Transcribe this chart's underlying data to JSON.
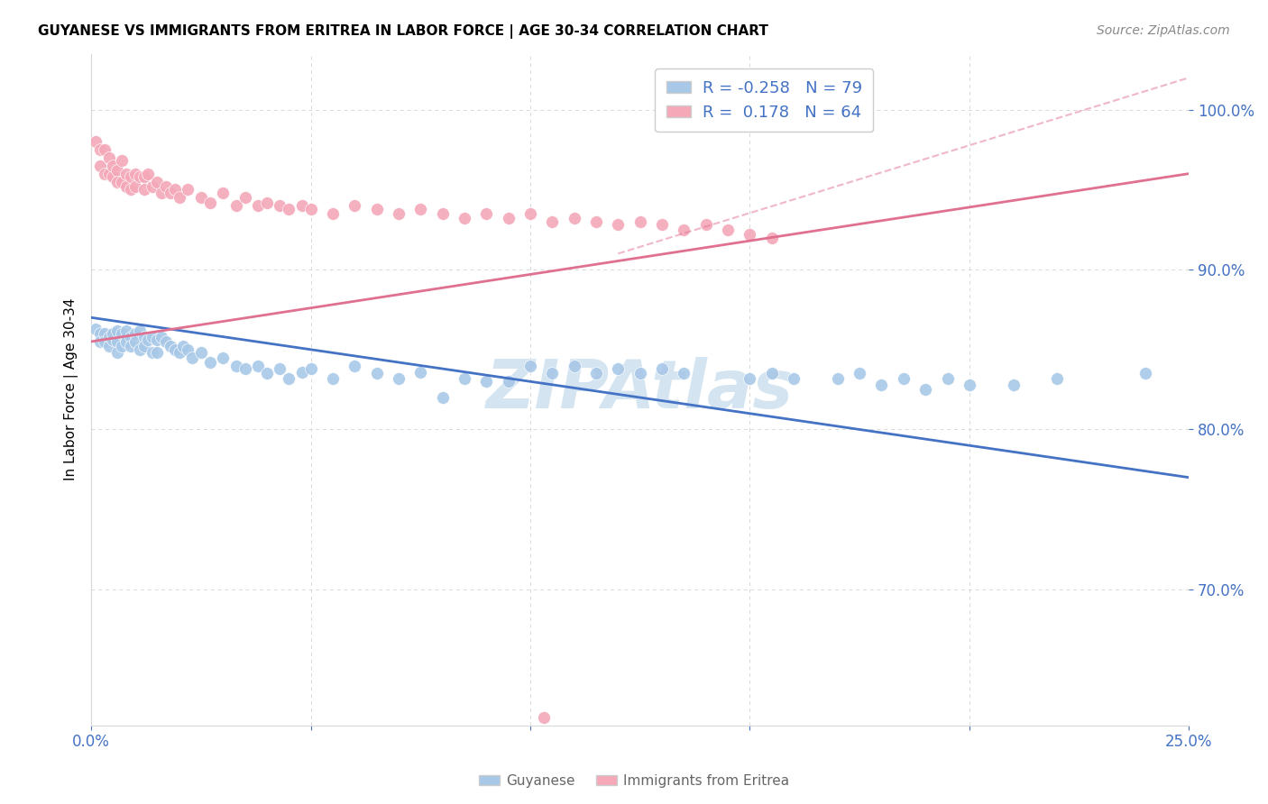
{
  "title": "GUYANESE VS IMMIGRANTS FROM ERITREA IN LABOR FORCE | AGE 30-34 CORRELATION CHART",
  "source": "Source: ZipAtlas.com",
  "ylabel": "In Labor Force | Age 30-34",
  "x_min": 0.0,
  "x_max": 0.25,
  "y_min": 0.615,
  "y_max": 1.035,
  "x_ticks": [
    0.0,
    0.05,
    0.1,
    0.15,
    0.2,
    0.25
  ],
  "x_tick_labels": [
    "0.0%",
    "",
    "",
    "",
    "",
    "25.0%"
  ],
  "y_ticks": [
    0.7,
    0.8,
    0.9,
    1.0
  ],
  "y_tick_labels": [
    "70.0%",
    "80.0%",
    "90.0%",
    "100.0%"
  ],
  "blue_color": "#a8c8e8",
  "pink_color": "#f4a8b8",
  "blue_line_color": "#4472c4",
  "pink_line_color": "#e07090",
  "blue_R": -0.258,
  "blue_N": 79,
  "pink_R": 0.178,
  "pink_N": 64,
  "watermark": "ZIPAtlas",
  "watermark_color": "#b8d4e8",
  "grid_color": "#d8d8d8",
  "axis_label_color": "#4472c4",
  "legend_label_color": "#4472c4",
  "blue_line_y0": 0.87,
  "blue_line_y1": 0.77,
  "pink_line_y0": 0.855,
  "pink_line_y1": 0.96,
  "blue_scatter_x": [
    0.001,
    0.002,
    0.002,
    0.003,
    0.003,
    0.004,
    0.004,
    0.005,
    0.005,
    0.006,
    0.006,
    0.006,
    0.007,
    0.007,
    0.008,
    0.008,
    0.008,
    0.009,
    0.009,
    0.01,
    0.01,
    0.011,
    0.011,
    0.012,
    0.012,
    0.013,
    0.014,
    0.014,
    0.015,
    0.015,
    0.016,
    0.017,
    0.018,
    0.019,
    0.02,
    0.021,
    0.022,
    0.023,
    0.025,
    0.027,
    0.03,
    0.033,
    0.035,
    0.038,
    0.04,
    0.043,
    0.045,
    0.048,
    0.05,
    0.055,
    0.06,
    0.065,
    0.07,
    0.075,
    0.08,
    0.085,
    0.09,
    0.095,
    0.1,
    0.105,
    0.11,
    0.115,
    0.12,
    0.125,
    0.13,
    0.135,
    0.15,
    0.155,
    0.16,
    0.17,
    0.175,
    0.18,
    0.185,
    0.19,
    0.195,
    0.2,
    0.21,
    0.22,
    0.24
  ],
  "blue_scatter_y": [
    0.863,
    0.86,
    0.855,
    0.86,
    0.855,
    0.858,
    0.852,
    0.856,
    0.86,
    0.862,
    0.855,
    0.848,
    0.86,
    0.852,
    0.858,
    0.862,
    0.855,
    0.858,
    0.852,
    0.86,
    0.855,
    0.862,
    0.85,
    0.858,
    0.852,
    0.856,
    0.858,
    0.848,
    0.856,
    0.848,
    0.858,
    0.855,
    0.852,
    0.85,
    0.848,
    0.852,
    0.85,
    0.845,
    0.848,
    0.842,
    0.845,
    0.84,
    0.838,
    0.84,
    0.835,
    0.838,
    0.832,
    0.836,
    0.838,
    0.832,
    0.84,
    0.835,
    0.832,
    0.836,
    0.82,
    0.832,
    0.83,
    0.83,
    0.84,
    0.835,
    0.84,
    0.835,
    0.838,
    0.835,
    0.838,
    0.835,
    0.832,
    0.835,
    0.832,
    0.832,
    0.835,
    0.828,
    0.832,
    0.825,
    0.832,
    0.828,
    0.828,
    0.832,
    0.835
  ],
  "pink_scatter_x": [
    0.001,
    0.002,
    0.002,
    0.003,
    0.003,
    0.004,
    0.004,
    0.005,
    0.005,
    0.006,
    0.006,
    0.007,
    0.007,
    0.008,
    0.008,
    0.009,
    0.009,
    0.01,
    0.01,
    0.011,
    0.012,
    0.012,
    0.013,
    0.014,
    0.015,
    0.016,
    0.017,
    0.018,
    0.019,
    0.02,
    0.022,
    0.025,
    0.027,
    0.03,
    0.033,
    0.035,
    0.038,
    0.04,
    0.043,
    0.045,
    0.048,
    0.05,
    0.055,
    0.06,
    0.065,
    0.07,
    0.075,
    0.08,
    0.085,
    0.09,
    0.095,
    0.1,
    0.105,
    0.11,
    0.115,
    0.12,
    0.125,
    0.13,
    0.135,
    0.14,
    0.145,
    0.15,
    0.155,
    0.103
  ],
  "pink_scatter_y": [
    0.98,
    0.975,
    0.965,
    0.975,
    0.96,
    0.97,
    0.96,
    0.965,
    0.958,
    0.962,
    0.955,
    0.968,
    0.955,
    0.96,
    0.952,
    0.958,
    0.95,
    0.96,
    0.952,
    0.958,
    0.958,
    0.95,
    0.96,
    0.952,
    0.955,
    0.948,
    0.952,
    0.948,
    0.95,
    0.945,
    0.95,
    0.945,
    0.942,
    0.948,
    0.94,
    0.945,
    0.94,
    0.942,
    0.94,
    0.938,
    0.94,
    0.938,
    0.935,
    0.94,
    0.938,
    0.935,
    0.938,
    0.935,
    0.932,
    0.935,
    0.932,
    0.935,
    0.93,
    0.932,
    0.93,
    0.928,
    0.93,
    0.928,
    0.925,
    0.928,
    0.925,
    0.922,
    0.92,
    0.62
  ]
}
